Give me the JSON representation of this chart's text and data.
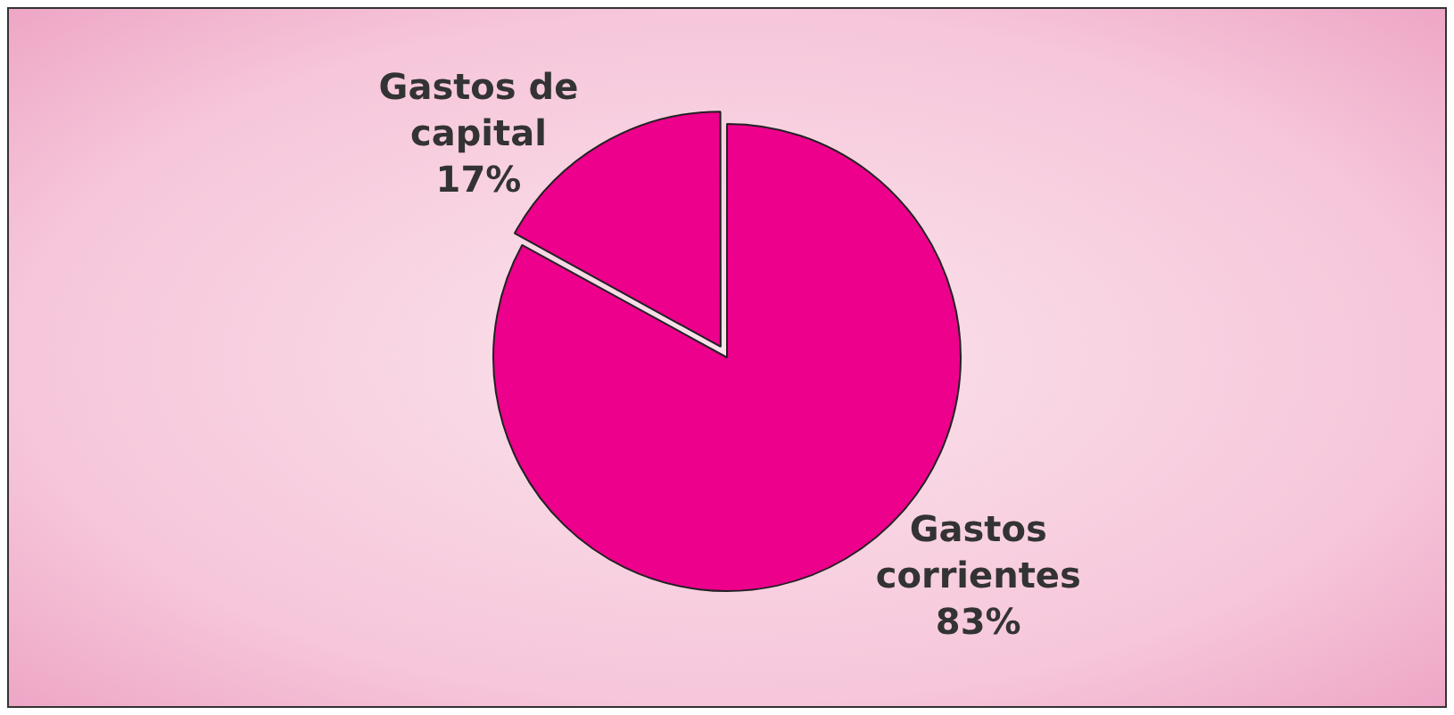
{
  "chart_data": {
    "type": "pie",
    "categories": [
      "Gastos corrientes",
      "Gastos de capital"
    ],
    "values": [
      83,
      17
    ],
    "value_labels": [
      "83%",
      "17%"
    ],
    "colors": [
      "#ec008c",
      "#ec008c"
    ],
    "legend": false
  }
}
